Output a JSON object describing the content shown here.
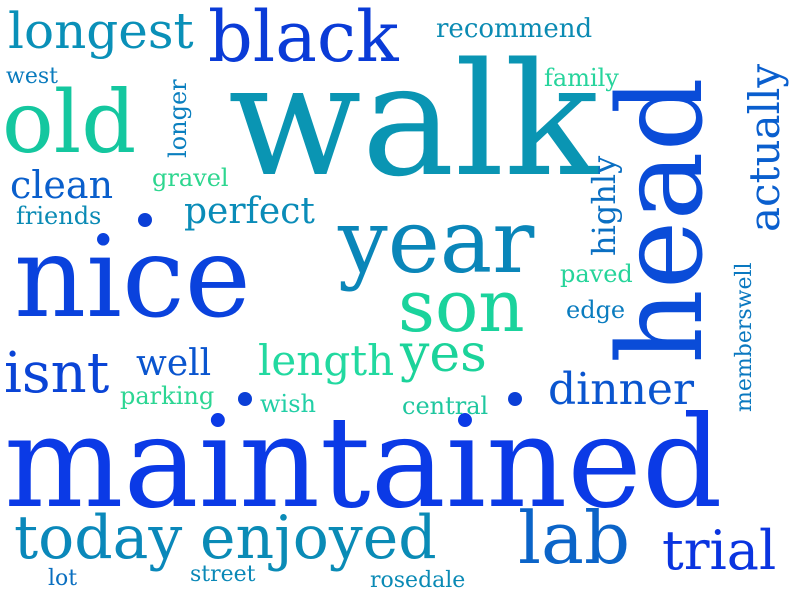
{
  "words": [
    {
      "text": "walk",
      "color": "#0a95b3",
      "rotated": false
    },
    {
      "text": "maintained",
      "color": "#0b3ae6",
      "rotated": false
    },
    {
      "text": "nice",
      "color": "#0a42dd",
      "rotated": false
    },
    {
      "text": "head",
      "color": "#0a4cd8",
      "rotated": true
    },
    {
      "text": "black",
      "color": "#0a3bd7",
      "rotated": false
    },
    {
      "text": "old",
      "color": "#14c79f",
      "rotated": false
    },
    {
      "text": "year",
      "color": "#0a86b9",
      "rotated": false
    },
    {
      "text": "son",
      "color": "#1ad39c",
      "rotated": false
    },
    {
      "text": "lab",
      "color": "#0b64c8",
      "rotated": false
    },
    {
      "text": "longest",
      "color": "#0a90b8",
      "rotated": false
    },
    {
      "text": "today",
      "color": "#0a88ba",
      "rotated": false
    },
    {
      "text": "enjoyed",
      "color": "#0a8bb6",
      "rotated": false
    },
    {
      "text": "trial",
      "color": "#0a34e0",
      "rotated": false
    },
    {
      "text": "isnt",
      "color": "#0a44d6",
      "rotated": false
    },
    {
      "text": "actually",
      "color": "#0a5fce",
      "rotated": true
    },
    {
      "text": "yes",
      "color": "#1bd39a",
      "rotated": false
    },
    {
      "text": "dinner",
      "color": "#0a55cf",
      "rotated": false
    },
    {
      "text": "length",
      "color": "#22d9a0",
      "rotated": false
    },
    {
      "text": "clean",
      "color": "#0a5fcc",
      "rotated": false
    },
    {
      "text": "perfect",
      "color": "#0a8cb8",
      "rotated": false
    },
    {
      "text": "highly",
      "color": "#0a6fc2",
      "rotated": true
    },
    {
      "text": "well",
      "color": "#0a55cf",
      "rotated": false
    },
    {
      "text": "recommend",
      "color": "#0b8bb3",
      "rotated": false
    },
    {
      "text": "family",
      "color": "#27d49c",
      "rotated": false
    },
    {
      "text": "longer",
      "color": "#0a7fbf",
      "rotated": true
    },
    {
      "text": "gravel",
      "color": "#2dd68f",
      "rotated": false
    },
    {
      "text": "friends",
      "color": "#0a8ab4",
      "rotated": false
    },
    {
      "text": "west",
      "color": "#0a7bbd",
      "rotated": false
    },
    {
      "text": "paved",
      "color": "#26d49a",
      "rotated": false
    },
    {
      "text": "edge",
      "color": "#0a7cbf",
      "rotated": false
    },
    {
      "text": "memberswell",
      "color": "#0a78c0",
      "rotated": true
    },
    {
      "text": "parking",
      "color": "#2cd693",
      "rotated": false
    },
    {
      "text": "wish",
      "color": "#22cfa6",
      "rotated": false
    },
    {
      "text": "central",
      "color": "#1fc79f",
      "rotated": false
    },
    {
      "text": "lot",
      "color": "#0a6fc0",
      "rotated": false
    },
    {
      "text": "street",
      "color": "#0a88b7",
      "rotated": false
    },
    {
      "text": "rosedale",
      "color": "#0a8ab5",
      "rotated": false
    }
  ],
  "dot_color": "#0b3fd6"
}
